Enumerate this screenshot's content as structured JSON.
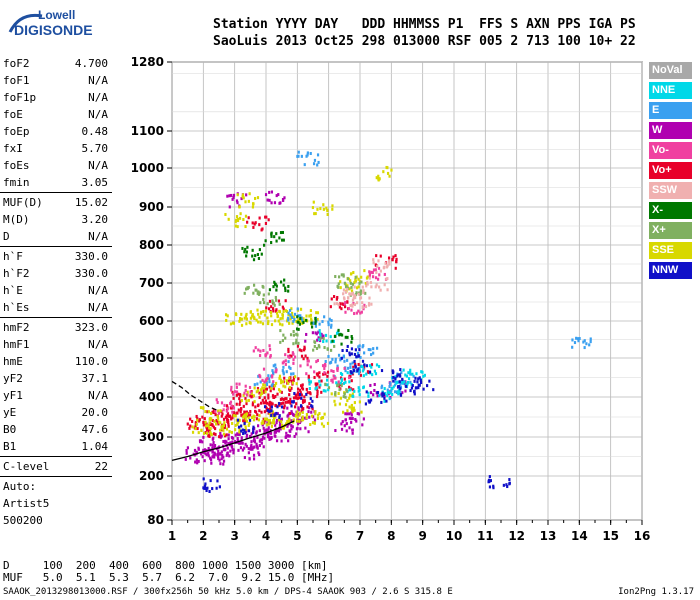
{
  "logo": {
    "line1": "Lowell",
    "line2": "DIGISONDE"
  },
  "header": {
    "labels": "Station YYYY DAY   DDD HHMMSS P1  FFS S AXN PPS IGA PS",
    "values": "SaoLuis 2013 Oct25 298 013000 RSF 005 2 713 100 10+ 22"
  },
  "params": {
    "group1": [
      {
        "label": "foF2",
        "value": "4.700"
      },
      {
        "label": "foF1",
        "value": "N/A"
      },
      {
        "label": "foF1p",
        "value": "N/A"
      },
      {
        "label": "foE",
        "value": "N/A"
      },
      {
        "label": "foEp",
        "value": "0.48"
      },
      {
        "label": "fxI",
        "value": "5.70"
      },
      {
        "label": "foEs",
        "value": "N/A"
      },
      {
        "label": "fmin",
        "value": "3.05"
      }
    ],
    "group2": [
      {
        "label": "MUF(D)",
        "value": "15.02"
      },
      {
        "label": "M(D)",
        "value": "3.20"
      },
      {
        "label": "D",
        "value": "N/A"
      }
    ],
    "group3": [
      {
        "label": "h`F",
        "value": "330.0"
      },
      {
        "label": "h`F2",
        "value": "330.0"
      },
      {
        "label": "h`E",
        "value": "N/A"
      },
      {
        "label": "h`Es",
        "value": "N/A"
      }
    ],
    "group4": [
      {
        "label": "hmF2",
        "value": "323.0"
      },
      {
        "label": "hmF1",
        "value": "N/A"
      },
      {
        "label": "hmE",
        "value": "110.0"
      },
      {
        "label": "yF2",
        "value": "37.1"
      },
      {
        "label": "yF1",
        "value": "N/A"
      },
      {
        "label": "yE",
        "value": "20.0"
      },
      {
        "label": "B0",
        "value": "47.6"
      },
      {
        "label": "B1",
        "value": "1.04"
      }
    ],
    "clevel": {
      "label": "C-level",
      "value": "22"
    },
    "auto": [
      "Auto:",
      "Artist5",
      "500200"
    ]
  },
  "legend": [
    {
      "label": "NoVal",
      "color": "#a8a8a8"
    },
    {
      "label": "NNE",
      "color": "#00d8e8"
    },
    {
      "label": "E",
      "color": "#3aa0f0"
    },
    {
      "label": "W",
      "color": "#b000b0"
    },
    {
      "label": "Vo-",
      "color": "#f040a0"
    },
    {
      "label": "Vo+",
      "color": "#e8002a"
    },
    {
      "label": "SSW",
      "color": "#f0b0b0"
    },
    {
      "label": "X-",
      "color": "#007800"
    },
    {
      "label": "X+",
      "color": "#80b060"
    },
    {
      "label": "SSE",
      "color": "#d8d800"
    },
    {
      "label": "NNW",
      "color": "#1010c8"
    }
  ],
  "footer": {
    "d_row": "D     100  200  400  600  800 1000 1500 3000 [km]",
    "muf_row": "MUF   5.0  5.1  5.3  5.7  6.2  7.0  9.2 15.0 [MHz]",
    "file_line": "SAAOK_2013298013000.RSF / 300fx256h 50 kHz 5.0 km / DPS-4 SAAOK 903 / 2.6 S 315.8 E",
    "version": "Ion2Png 1.3.17"
  },
  "chart_data": {
    "type": "scatter",
    "xlim": [
      1,
      16
    ],
    "ylim": [
      80,
      1280
    ],
    "x_ticks": [
      "1",
      "2",
      "3",
      "4",
      "5",
      "6",
      "7",
      "8",
      "9",
      "10",
      "11",
      "12",
      "13",
      "14",
      "15",
      "16"
    ],
    "y_ticks": [
      "80",
      "200",
      "300",
      "400",
      "500",
      "600",
      "700",
      "800",
      "900",
      "1000",
      "1100",
      "1280"
    ],
    "grid": true,
    "clusters": [
      {
        "name": "W",
        "color": "#b000b0",
        "pts": [
          [
            1.7,
            260
          ],
          [
            2.0,
            255
          ],
          [
            2.3,
            265
          ],
          [
            2.6,
            270
          ],
          [
            2.9,
            275
          ],
          [
            3.2,
            285
          ],
          [
            3.5,
            290
          ],
          [
            3.8,
            300
          ],
          [
            4.1,
            305
          ],
          [
            4.4,
            310
          ],
          [
            4.7,
            320
          ],
          [
            5.0,
            330
          ],
          [
            2.2,
            285
          ],
          [
            2.8,
            300
          ],
          [
            3.4,
            310
          ],
          [
            4.0,
            330
          ],
          [
            4.6,
            345
          ],
          [
            5.2,
            360
          ],
          [
            6.5,
            330
          ],
          [
            6.8,
            350
          ],
          [
            7.6,
            420
          ],
          [
            8.2,
            430
          ],
          [
            3.0,
            920
          ],
          [
            4.3,
            930
          ],
          [
            5.5,
            560
          ],
          [
            4.8,
            360
          ],
          [
            3.6,
            265
          ],
          [
            2.5,
            250
          ]
        ]
      },
      {
        "name": "Vo+",
        "color": "#e8002a",
        "pts": [
          [
            1.8,
            340
          ],
          [
            2.2,
            350
          ],
          [
            2.6,
            360
          ],
          [
            3.0,
            365
          ],
          [
            3.4,
            370
          ],
          [
            3.8,
            380
          ],
          [
            4.2,
            390
          ],
          [
            4.6,
            400
          ],
          [
            5.0,
            410
          ],
          [
            5.4,
            420
          ],
          [
            2.0,
            330
          ],
          [
            2.9,
            345
          ],
          [
            3.6,
            355
          ],
          [
            4.4,
            375
          ],
          [
            5.2,
            385
          ],
          [
            3.2,
            400
          ],
          [
            4.0,
            420
          ],
          [
            4.8,
            440
          ],
          [
            5.6,
            455
          ],
          [
            6.6,
            440
          ],
          [
            7.0,
            470
          ],
          [
            7.8,
            760
          ],
          [
            6.3,
            650
          ],
          [
            5.0,
            520
          ],
          [
            4.3,
            640
          ],
          [
            3.7,
            860
          ],
          [
            2.4,
            320
          ]
        ]
      },
      {
        "name": "SSE",
        "color": "#d8d800",
        "pts": [
          [
            1.9,
            330
          ],
          [
            2.4,
            325
          ],
          [
            2.8,
            330
          ],
          [
            3.2,
            340
          ],
          [
            3.6,
            345
          ],
          [
            4.0,
            350
          ],
          [
            4.4,
            345
          ],
          [
            4.8,
            340
          ],
          [
            5.2,
            350
          ],
          [
            5.6,
            345
          ],
          [
            3.0,
            610
          ],
          [
            3.4,
            612
          ],
          [
            3.8,
            615
          ],
          [
            4.2,
            612
          ],
          [
            4.6,
            615
          ],
          [
            5.0,
            618
          ],
          [
            5.4,
            615
          ],
          [
            3.5,
            410
          ],
          [
            4.1,
            430
          ],
          [
            4.7,
            445
          ],
          [
            3.0,
            870
          ],
          [
            3.4,
            920
          ],
          [
            6.6,
            700
          ],
          [
            6.9,
            720
          ],
          [
            6.4,
            400
          ],
          [
            6.7,
            380
          ],
          [
            5.8,
            900
          ],
          [
            7.8,
            990
          ],
          [
            2.2,
            360
          ]
        ]
      },
      {
        "name": "E",
        "color": "#3aa0f0",
        "pts": [
          [
            5.3,
            1030
          ],
          [
            6.8,
            480
          ],
          [
            7.2,
            520
          ],
          [
            8.0,
            430
          ],
          [
            8.4,
            450
          ],
          [
            14.0,
            540
          ],
          [
            5.8,
            600
          ],
          [
            4.9,
            620
          ],
          [
            6.2,
            500
          ],
          [
            3.9,
            450
          ],
          [
            4.5,
            480
          ]
        ]
      },
      {
        "name": "NNE",
        "color": "#00d8e8",
        "pts": [
          [
            6.5,
            450
          ],
          [
            6.9,
            420
          ],
          [
            7.3,
            470
          ],
          [
            7.9,
            410
          ],
          [
            8.3,
            440
          ],
          [
            8.7,
            460
          ],
          [
            5.6,
            430
          ],
          [
            6.0,
            560
          ]
        ]
      },
      {
        "name": "NNW",
        "color": "#1010c8",
        "pts": [
          [
            6.6,
            520
          ],
          [
            7.0,
            480
          ],
          [
            7.5,
            400
          ],
          [
            8.0,
            460
          ],
          [
            8.5,
            420
          ],
          [
            9.0,
            440
          ],
          [
            2.3,
            180
          ],
          [
            11.4,
            185
          ],
          [
            4.2,
            370
          ],
          [
            5.1,
            395
          ],
          [
            3.3,
            330
          ]
        ]
      },
      {
        "name": "X+",
        "color": "#80b060",
        "pts": [
          [
            6.5,
            710
          ],
          [
            6.9,
            690
          ],
          [
            4.1,
            660
          ],
          [
            3.6,
            680
          ],
          [
            5.8,
            540
          ],
          [
            6.2,
            420
          ],
          [
            4.7,
            560
          ]
        ]
      },
      {
        "name": "X-",
        "color": "#007800",
        "pts": [
          [
            3.5,
            780
          ],
          [
            4.2,
            820
          ],
          [
            6.4,
            560
          ],
          [
            5.2,
            600
          ],
          [
            4.4,
            700
          ]
        ]
      },
      {
        "name": "Vo-",
        "color": "#f040a0",
        "pts": [
          [
            2.6,
            380
          ],
          [
            3.2,
            420
          ],
          [
            4.0,
            460
          ],
          [
            4.8,
            500
          ],
          [
            5.6,
            480
          ],
          [
            6.4,
            460
          ],
          [
            7.6,
            730
          ],
          [
            6.8,
            640
          ],
          [
            3.9,
            520
          ]
        ]
      },
      {
        "name": "SSW",
        "color": "#f0b0b0",
        "pts": [
          [
            6.5,
            660
          ],
          [
            6.8,
            680
          ],
          [
            7.0,
            650
          ],
          [
            7.5,
            700
          ],
          [
            7.7,
            750
          ]
        ]
      }
    ],
    "profile_lines": [
      {
        "name": "profile-fit",
        "pts": [
          [
            1.0,
            240
          ],
          [
            1.5,
            250
          ],
          [
            2.0,
            262
          ],
          [
            2.5,
            272
          ],
          [
            3.0,
            285
          ],
          [
            3.5,
            298
          ],
          [
            4.0,
            310
          ],
          [
            4.5,
            325
          ],
          [
            4.9,
            340
          ]
        ]
      },
      {
        "name": "profile-dashed",
        "dashed": true,
        "pts": [
          [
            1.0,
            440
          ],
          [
            1.3,
            425
          ],
          [
            1.6,
            405
          ],
          [
            1.9,
            390
          ],
          [
            2.2,
            375
          ],
          [
            2.5,
            365
          ]
        ]
      }
    ]
  }
}
